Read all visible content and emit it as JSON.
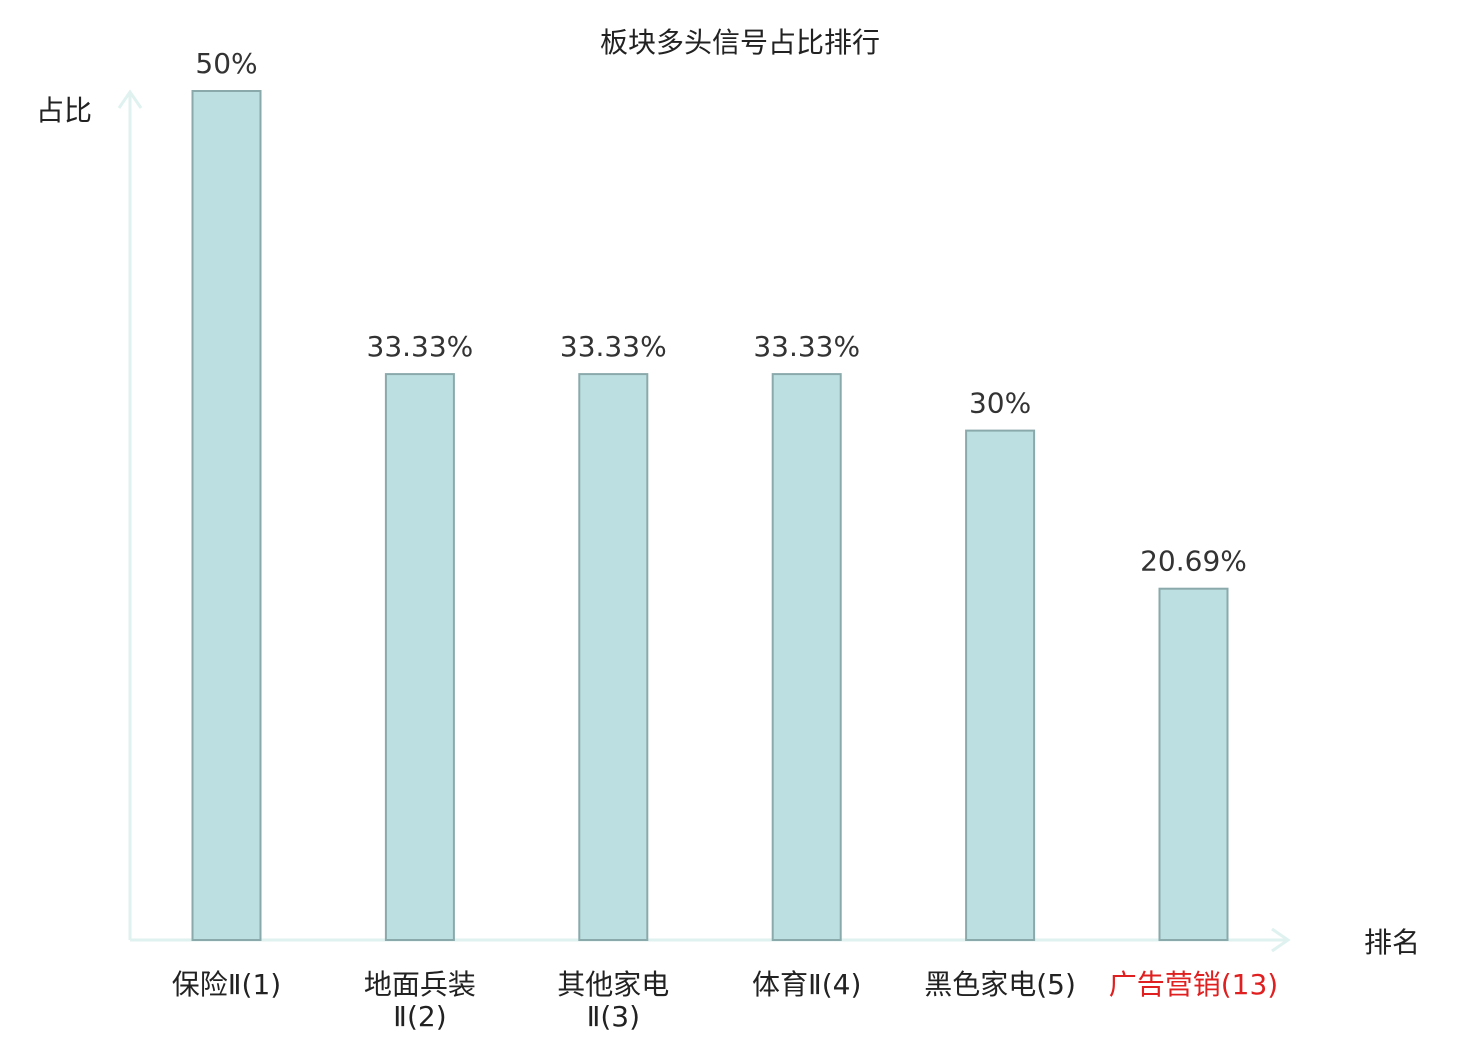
{
  "chart_data": {
    "type": "bar",
    "title": "板块多头信号占比排行",
    "ylabel": "占比",
    "xlabel": "排名",
    "ylim": [
      0,
      50
    ],
    "grid": false,
    "categories": [
      [
        "保险Ⅱ(1)"
      ],
      [
        "地面兵装",
        "Ⅱ(2)"
      ],
      [
        "其他家电",
        "Ⅱ(3)"
      ],
      [
        "体育Ⅱ(4)"
      ],
      [
        "黑色家电(5)"
      ],
      [
        "广告营销(13)"
      ]
    ],
    "values": [
      50,
      33.33,
      33.33,
      33.33,
      30,
      20.69
    ],
    "value_labels": [
      "50%",
      "33.33%",
      "33.33%",
      "33.33%",
      "30%",
      "20.69%"
    ],
    "highlight_index": 5,
    "colors": {
      "bar_fill": "#bce0e2",
      "bar_stroke": "#8aa9ab",
      "axis": "#dff2ef",
      "text": "#222222",
      "value_text": "#333333",
      "highlight_text": "#e02020"
    }
  }
}
